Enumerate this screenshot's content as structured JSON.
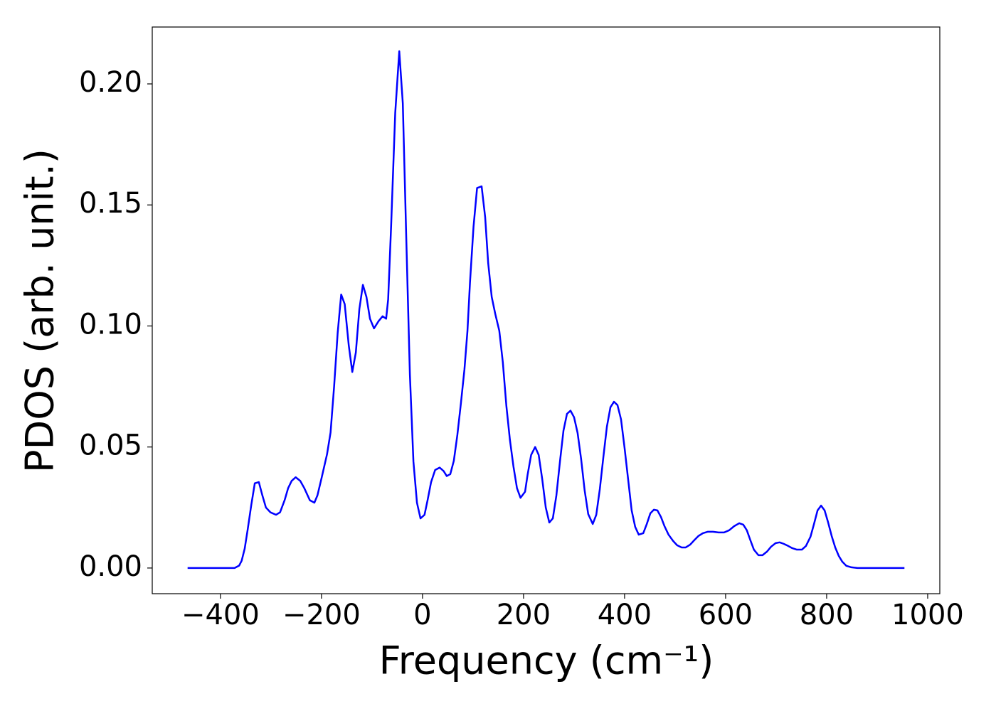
{
  "chart_data": {
    "type": "line",
    "xlabel": "Frequency (cm⁻¹)",
    "ylabel": "PDOS (arb. unit.)",
    "color": "#0000ff",
    "x": [
      -465,
      -372,
      -363,
      -358,
      -352,
      -346,
      -339,
      -332,
      -324,
      -317,
      -310,
      -301,
      -290,
      -282,
      -273,
      -266,
      -259,
      -251,
      -242,
      -234,
      -223,
      -214,
      -208,
      -200,
      -189,
      -182,
      -175,
      -168,
      -161,
      -154,
      -146,
      -139,
      -132,
      -125,
      -118,
      -111,
      -104,
      -96,
      -87,
      -79,
      -72,
      -68,
      -62,
      -54,
      -46,
      -39,
      -32,
      -25,
      -18,
      -11,
      -4,
      4,
      10,
      17,
      25,
      34,
      42,
      48,
      55,
      62,
      69,
      76,
      83,
      89,
      94,
      101,
      108,
      117,
      124,
      130,
      137,
      144,
      152,
      159,
      166,
      173,
      180,
      187,
      194,
      203,
      208,
      215,
      223,
      230,
      237,
      244,
      251,
      258,
      265,
      272,
      279,
      286,
      293,
      300,
      307,
      314,
      321,
      328,
      337,
      344,
      351,
      358,
      365,
      372,
      379,
      386,
      393,
      400,
      407,
      414,
      421,
      428,
      437,
      444,
      451,
      458,
      465,
      472,
      479,
      487,
      496,
      504,
      513,
      521,
      530,
      538,
      546,
      555,
      565,
      575,
      586,
      597,
      607,
      617,
      627,
      635,
      642,
      649,
      656,
      665,
      673,
      682,
      690,
      699,
      707,
      715,
      724,
      732,
      741,
      751,
      759,
      768,
      775,
      782,
      789,
      796,
      803,
      810,
      817,
      824,
      831,
      839,
      849,
      861,
      954
    ],
    "values": [
      0,
      0,
      0.001,
      0.003,
      0.008,
      0.016,
      0.026,
      0.035,
      0.0355,
      0.03,
      0.025,
      0.023,
      0.022,
      0.023,
      0.028,
      0.033,
      0.036,
      0.0375,
      0.036,
      0.033,
      0.028,
      0.027,
      0.03,
      0.037,
      0.047,
      0.056,
      0.075,
      0.097,
      0.113,
      0.109,
      0.092,
      0.081,
      0.089,
      0.107,
      0.117,
      0.112,
      0.103,
      0.099,
      0.102,
      0.104,
      0.103,
      0.111,
      0.142,
      0.188,
      0.2135,
      0.192,
      0.135,
      0.08,
      0.044,
      0.027,
      0.0205,
      0.022,
      0.028,
      0.0355,
      0.0405,
      0.0415,
      0.04,
      0.038,
      0.0388,
      0.0443,
      0.055,
      0.068,
      0.082,
      0.098,
      0.118,
      0.141,
      0.157,
      0.1577,
      0.145,
      0.126,
      0.112,
      0.105,
      0.098,
      0.085,
      0.067,
      0.053,
      0.042,
      0.033,
      0.029,
      0.0315,
      0.0385,
      0.0467,
      0.05,
      0.0467,
      0.0367,
      0.025,
      0.0188,
      0.0205,
      0.03,
      0.0438,
      0.0567,
      0.0637,
      0.065,
      0.0623,
      0.0558,
      0.045,
      0.032,
      0.0223,
      0.0182,
      0.022,
      0.0326,
      0.0458,
      0.0584,
      0.0664,
      0.0687,
      0.0673,
      0.0614,
      0.0496,
      0.0367,
      0.0238,
      0.017,
      0.0138,
      0.0144,
      0.0182,
      0.0226,
      0.0241,
      0.0238,
      0.0211,
      0.0173,
      0.0138,
      0.0112,
      0.0094,
      0.0085,
      0.0085,
      0.0097,
      0.0115,
      0.0132,
      0.0144,
      0.015,
      0.015,
      0.0147,
      0.0147,
      0.0156,
      0.0173,
      0.0185,
      0.0179,
      0.0156,
      0.0115,
      0.0076,
      0.0053,
      0.0053,
      0.0068,
      0.0088,
      0.0103,
      0.0106,
      0.01,
      0.0091,
      0.0082,
      0.0076,
      0.0076,
      0.0091,
      0.0129,
      0.0182,
      0.0238,
      0.0258,
      0.0238,
      0.0188,
      0.0132,
      0.0085,
      0.005,
      0.0026,
      0.0009,
      0.0003,
      0,
      0
    ],
    "xlim": [
      -535,
      1024
    ],
    "ylim": [
      -0.0106,
      0.2235
    ],
    "xticks": [
      {
        "value": -400,
        "label": "−400"
      },
      {
        "value": -200,
        "label": "−200"
      },
      0,
      200,
      400,
      600,
      800,
      1000
    ],
    "yticks": [
      {
        "value": 0,
        "label": "0.00"
      },
      0.05,
      {
        "value": 0.1,
        "label": "0.10"
      },
      0.15,
      {
        "value": 0.2,
        "label": "0.20"
      }
    ]
  }
}
